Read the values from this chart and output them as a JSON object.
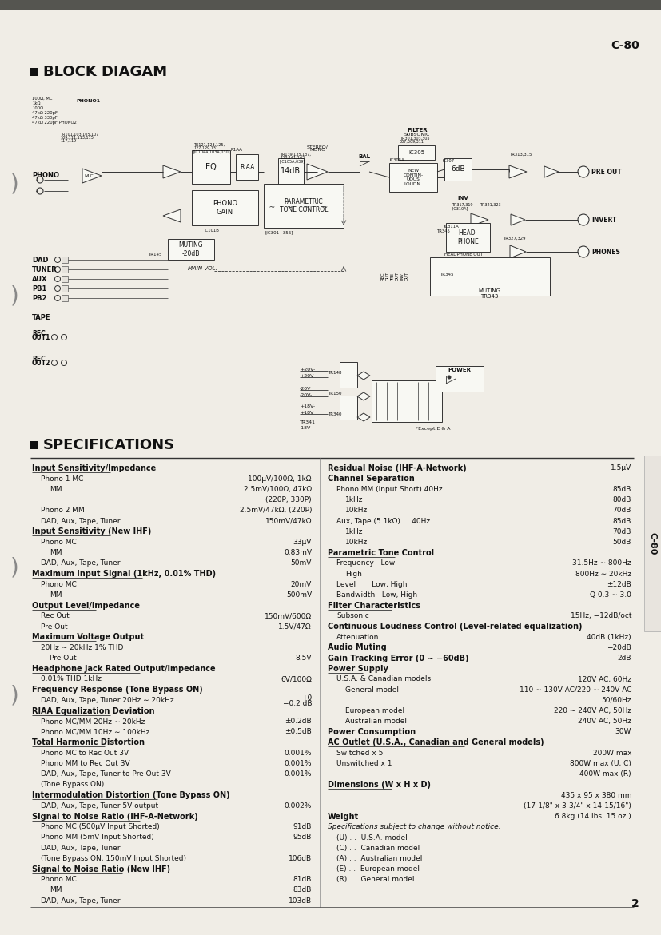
{
  "page_label": "C-80",
  "page_number": "2",
  "side_label": "C-80",
  "section1_title": "BLOCK DIAGAM",
  "section2_title": "SPECIFICATIONS",
  "bg_color": "#f2efe8",
  "text_color": "#1a1a1a",
  "specs_left": [
    {
      "bold": true,
      "underline": true,
      "text": "Input Sensitivity/Impedance",
      "value": ""
    },
    {
      "bold": false,
      "indent": 1,
      "text": "Phono 1 MC",
      "value": "100μV/100Ω, 1kΩ"
    },
    {
      "bold": false,
      "indent": 2,
      "text": "MM",
      "value": "2.5mV/100Ω, 47kΩ"
    },
    {
      "bold": false,
      "indent": 2,
      "text": "",
      "value": "(220P, 330P)"
    },
    {
      "bold": false,
      "indent": 1,
      "text": "Phono 2 MM",
      "value": "2.5mV/47kΩ, (220P)"
    },
    {
      "bold": false,
      "indent": 1,
      "text": "DAD, Aux, Tape, Tuner",
      "value": "150mV/47kΩ"
    },
    {
      "bold": true,
      "underline": true,
      "text": "Input Sensitivity (New IHF)",
      "value": ""
    },
    {
      "bold": false,
      "indent": 1,
      "text": "Phono MC",
      "value": "33μV"
    },
    {
      "bold": false,
      "indent": 2,
      "text": "MM",
      "value": "0.83mV"
    },
    {
      "bold": false,
      "indent": 1,
      "text": "DAD, Aux, Tape, Tuner",
      "value": "50mV"
    },
    {
      "bold": true,
      "underline": true,
      "text": "Maximum Input Signal (1kHz, 0.01% THD)",
      "value": ""
    },
    {
      "bold": false,
      "indent": 1,
      "text": "Phono MC",
      "value": "20mV"
    },
    {
      "bold": false,
      "indent": 2,
      "text": "MM",
      "value": "500mV"
    },
    {
      "bold": true,
      "underline": true,
      "text": "Output Level/Impedance",
      "value": ""
    },
    {
      "bold": false,
      "indent": 1,
      "text": "Rec Out",
      "value": "150mV/600Ω"
    },
    {
      "bold": false,
      "indent": 1,
      "text": "Pre Out",
      "value": "1.5V/47Ω"
    },
    {
      "bold": true,
      "underline": true,
      "text": "Maximum Voltage Output",
      "value": ""
    },
    {
      "bold": false,
      "indent": 1,
      "text": "20Hz ∼ 20kHz 1% THD",
      "value": ""
    },
    {
      "bold": false,
      "indent": 2,
      "text": "Pre Out",
      "value": "8.5V"
    },
    {
      "bold": true,
      "underline": true,
      "text": "Headphone Jack Rated Output/Impedance",
      "value": ""
    },
    {
      "bold": false,
      "indent": 1,
      "text": "0.01% THD 1kHz",
      "value": "6V/100Ω"
    },
    {
      "bold": true,
      "underline": true,
      "text": "Frequency Response (Tone Bypass ON)",
      "value": ""
    },
    {
      "bold": false,
      "indent": 1,
      "text": "DAD, Aux, Tape, Tuner 20Hz ∼ 20kHz",
      "value": "+0\n−0.2 dB"
    },
    {
      "bold": true,
      "underline": true,
      "text": "RIAA Equalization Deviation",
      "value": ""
    },
    {
      "bold": false,
      "indent": 1,
      "text": "Phono MC/MM 20Hz ∼ 20kHz",
      "value": "±0.2dB"
    },
    {
      "bold": false,
      "indent": 1,
      "text": "Phono MC/MM 10Hz ∼ 100kHz",
      "value": "±0.5dB"
    },
    {
      "bold": true,
      "underline": true,
      "text": "Total Harmonic Distortion",
      "value": ""
    },
    {
      "bold": false,
      "indent": 1,
      "text": "Phono MC to Rec Out 3V",
      "value": "0.001%"
    },
    {
      "bold": false,
      "indent": 1,
      "text": "Phono MM to Rec Out 3V",
      "value": "0.001%"
    },
    {
      "bold": false,
      "indent": 1,
      "text": "DAD, Aux, Tape, Tuner to Pre Out 3V",
      "value": "0.001%"
    },
    {
      "bold": false,
      "indent": 1,
      "text": "(Tone Bypass ON)",
      "value": ""
    },
    {
      "bold": true,
      "underline": true,
      "text": "Intermodulation Distortion (Tone Bypass ON)",
      "value": ""
    },
    {
      "bold": false,
      "indent": 1,
      "text": "DAD, Aux, Tape, Tuner 5V output",
      "value": "0.002%"
    },
    {
      "bold": true,
      "underline": true,
      "text": "Signal to Noise Ratio (IHF-A-Network)",
      "value": ""
    },
    {
      "bold": false,
      "indent": 1,
      "text": "Phono MC (500μV Input Shorted)",
      "value": "91dB"
    },
    {
      "bold": false,
      "indent": 1,
      "text": "Phono MM (5mV Input Shorted)",
      "value": "95dB"
    },
    {
      "bold": false,
      "indent": 1,
      "text": "DAD, Aux, Tape, Tuner",
      "value": ""
    },
    {
      "bold": false,
      "indent": 1,
      "text": "(Tone Bypass ON, 150mV Input Shorted)",
      "value": "106dB"
    },
    {
      "bold": true,
      "underline": true,
      "text": "Signal to Noise Ratio (New IHF)",
      "value": ""
    },
    {
      "bold": false,
      "indent": 1,
      "text": "Phono MC",
      "value": "81dB"
    },
    {
      "bold": false,
      "indent": 2,
      "text": "MM",
      "value": "83dB"
    },
    {
      "bold": false,
      "indent": 1,
      "text": "DAD, Aux, Tape, Tuner",
      "value": "103dB"
    }
  ],
  "specs_right": [
    {
      "bold": true,
      "underline": false,
      "text": "Residual Noise (IHF-A-Network)",
      "value": "1.5μV"
    },
    {
      "bold": true,
      "underline": true,
      "text": "Channel Separation",
      "value": ""
    },
    {
      "bold": false,
      "indent": 1,
      "text": "Phono MM (Input Short) 40Hz",
      "value": "85dB"
    },
    {
      "bold": false,
      "indent": 2,
      "text": "1kHz",
      "value": "80dB"
    },
    {
      "bold": false,
      "indent": 2,
      "text": "10kHz",
      "value": "70dB"
    },
    {
      "bold": false,
      "indent": 1,
      "text": "Aux, Tape (5.1kΩ)     40Hz",
      "value": "85dB"
    },
    {
      "bold": false,
      "indent": 2,
      "text": "1kHz",
      "value": "70dB"
    },
    {
      "bold": false,
      "indent": 2,
      "text": "10kHz",
      "value": "50dB"
    },
    {
      "bold": true,
      "underline": true,
      "text": "Parametric Tone Control",
      "value": ""
    },
    {
      "bold": false,
      "indent": 1,
      "text": "Frequency   Low",
      "value": "31.5Hz ∼ 800Hz"
    },
    {
      "bold": false,
      "indent": 2,
      "text": "High",
      "value": "800Hz ∼ 20kHz"
    },
    {
      "bold": false,
      "indent": 1,
      "text": "Level       Low, High",
      "value": "±12dB"
    },
    {
      "bold": false,
      "indent": 1,
      "text": "Bandwidth   Low, High",
      "value": "Q 0.3 ∼ 3.0"
    },
    {
      "bold": true,
      "underline": true,
      "text": "Filter Characteristics",
      "value": ""
    },
    {
      "bold": false,
      "indent": 1,
      "text": "Subsonic",
      "value": "15Hz, −12dB/oct"
    },
    {
      "bold": true,
      "underline": false,
      "text": "Continuous Loudness Control (Level-related equalization)",
      "value": ""
    },
    {
      "bold": false,
      "indent": 1,
      "text": "Attenuation",
      "value": "40dB (1kHz)"
    },
    {
      "bold": true,
      "underline": false,
      "text": "Audio Muting",
      "value": "−20dB"
    },
    {
      "bold": true,
      "underline": false,
      "text": "Gain Tracking Error (0 ∼ −60dB)",
      "value": "2dB"
    },
    {
      "bold": true,
      "underline": true,
      "text": "Power Supply",
      "value": ""
    },
    {
      "bold": false,
      "indent": 1,
      "text": "U.S.A. & Canadian models",
      "value": "120V AC, 60Hz"
    },
    {
      "bold": false,
      "indent": 2,
      "text": "General model",
      "value": "110 ∼ 130V AC/220 ∼ 240V AC"
    },
    {
      "bold": false,
      "indent": 2,
      "text": "",
      "value": "50/60Hz"
    },
    {
      "bold": false,
      "indent": 2,
      "text": "European model",
      "value": "220 ∼ 240V AC, 50Hz"
    },
    {
      "bold": false,
      "indent": 2,
      "text": "Australian model",
      "value": "240V AC, 50Hz"
    },
    {
      "bold": true,
      "underline": false,
      "text": "Power Consumption",
      "value": "30W"
    },
    {
      "bold": true,
      "underline": true,
      "text": "AC Outlet (U.S.A., Canadian and General models)",
      "value": ""
    },
    {
      "bold": false,
      "indent": 1,
      "text": "Switched x 5",
      "value": "200W max"
    },
    {
      "bold": false,
      "indent": 1,
      "text": "Unswitched x 1",
      "value": "800W max (U, C)"
    },
    {
      "bold": false,
      "indent": 2,
      "text": "",
      "value": "400W max (R)"
    },
    {
      "bold": true,
      "underline": true,
      "text": "Dimensions (W x H x D)",
      "value": ""
    },
    {
      "bold": false,
      "indent": 1,
      "text": "",
      "value": "435 x 95 x 380 mm"
    },
    {
      "bold": false,
      "indent": 1,
      "text": "",
      "value": "(17-1/8\" x 3-3/4\" x 14-15/16\")"
    },
    {
      "bold": true,
      "underline": false,
      "text": "Weight",
      "value": "6.8kg (14 lbs. 15 oz.)"
    },
    {
      "bold": false,
      "italic": true,
      "text": "Specifications subject to change without notice.",
      "value": ""
    },
    {
      "bold": false,
      "indent": 1,
      "text": "(U) . .  U.S.A. model",
      "value": ""
    },
    {
      "bold": false,
      "indent": 1,
      "text": "(C) . .  Canadian model",
      "value": ""
    },
    {
      "bold": false,
      "indent": 1,
      "text": "(A) . .  Australian model",
      "value": ""
    },
    {
      "bold": false,
      "indent": 1,
      "text": "(E) . .  European model",
      "value": ""
    },
    {
      "bold": false,
      "indent": 1,
      "text": "(R) . .  General model",
      "value": ""
    }
  ]
}
